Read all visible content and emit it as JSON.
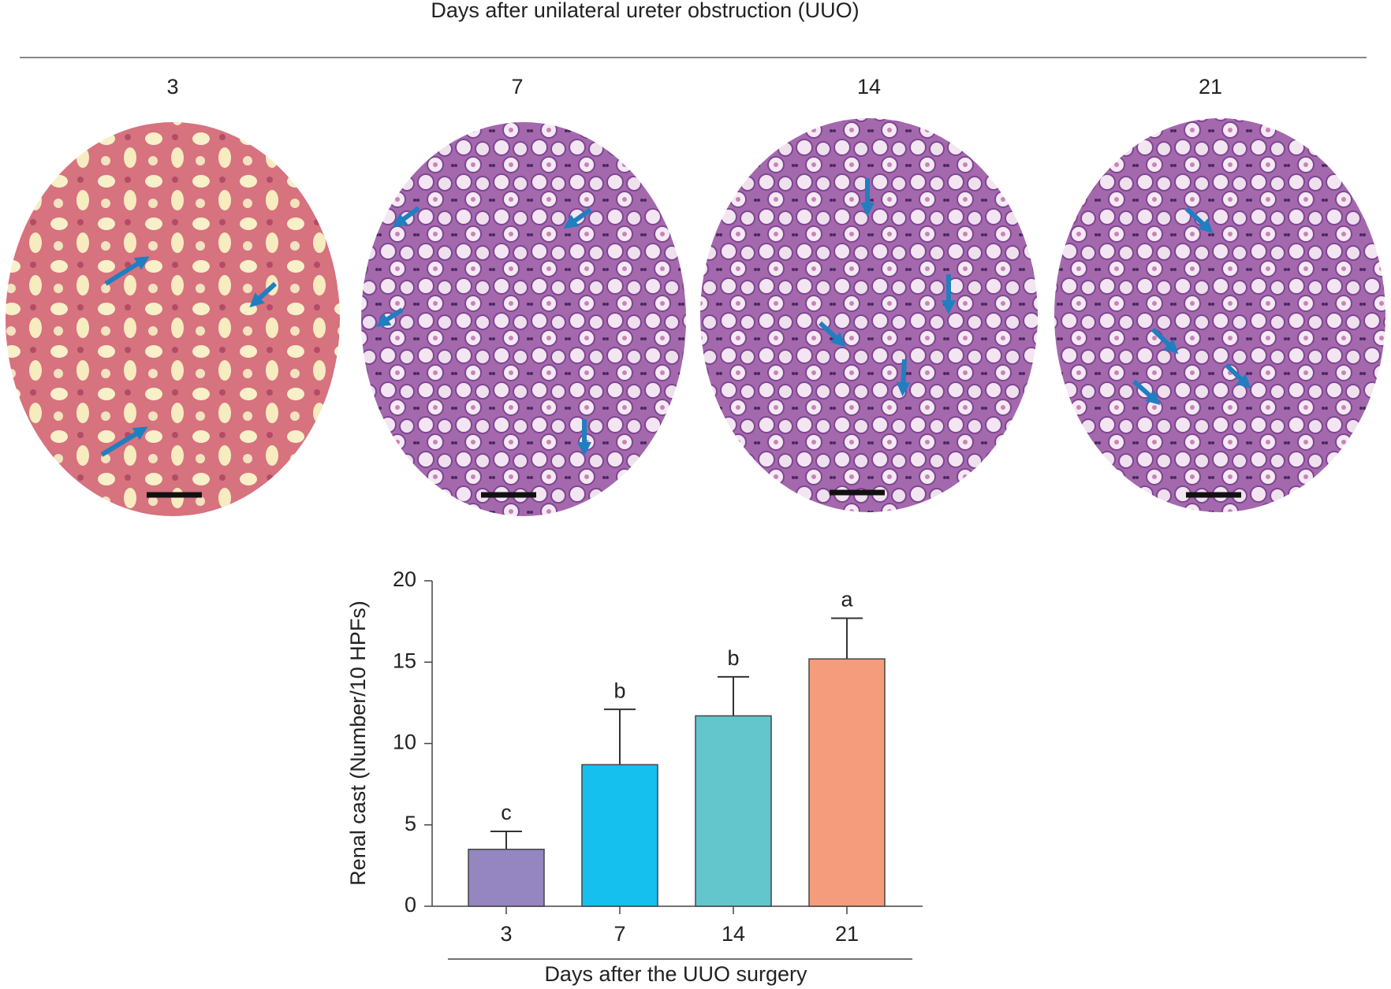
{
  "header": {
    "title": "Days after unilateral ureter obstruction (UUO)"
  },
  "panels": [
    {
      "label": "3"
    },
    {
      "label": "7"
    },
    {
      "label": "14"
    },
    {
      "label": "21"
    }
  ],
  "chart_data": {
    "type": "bar",
    "categories": [
      "3",
      "7",
      "14",
      "21"
    ],
    "values": [
      3.5,
      8.7,
      11.7,
      15.2
    ],
    "errors": [
      1.1,
      3.4,
      2.4,
      2.5
    ],
    "annotations": [
      "c",
      "b",
      "b",
      "a"
    ],
    "colors": [
      "#9585c0",
      "#15c0ef",
      "#62c6cc",
      "#f59c7d"
    ],
    "y_label": "Renal cast (Number/10 HPFs)",
    "x_label": "Days after the UUO surgery",
    "ylim": [
      0,
      20
    ],
    "yticks": [
      0,
      5,
      10,
      15,
      20
    ],
    "grid": false
  }
}
